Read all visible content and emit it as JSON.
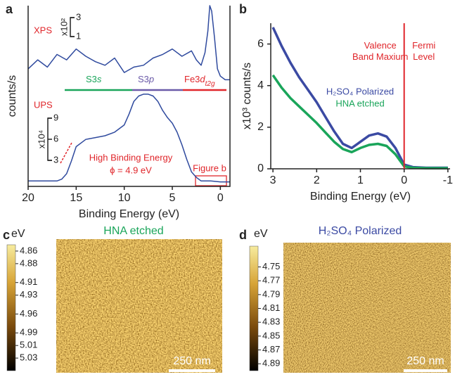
{
  "chart_data": [
    {
      "type": "line",
      "panel_label": "a",
      "xlabel": "Binding Energy (eV)",
      "ylabel": "counts/s",
      "xlim": [
        20,
        -1
      ],
      "xticks": [
        20,
        15,
        10,
        5,
        0
      ],
      "ylim": [
        0,
        100
      ],
      "series": [
        {
          "name": "XPS",
          "color": "#2f4a9e",
          "x": [
            20,
            19,
            18,
            17,
            16,
            15,
            14,
            13,
            12,
            11,
            10,
            9,
            8,
            7,
            6,
            5,
            4,
            3,
            2.5,
            2,
            1.6,
            1.3,
            1.1,
            0.9,
            0.6,
            0.3,
            0,
            -0.5,
            -1
          ],
          "values": [
            65,
            70,
            66,
            73,
            70,
            76,
            72,
            69,
            67,
            71,
            63,
            66,
            67,
            71,
            73,
            76,
            72,
            75,
            70,
            67,
            74,
            86,
            100,
            97,
            82,
            65,
            61,
            59,
            59
          ]
        },
        {
          "name": "UPS",
          "color": "#2f4a9e",
          "x": [
            20,
            18,
            17,
            16.5,
            16,
            15.5,
            15,
            14,
            13,
            12,
            11,
            10,
            9.5,
            9,
            8.5,
            8,
            7.5,
            7,
            6.5,
            6,
            5.5,
            5,
            4.5,
            4,
            3.5,
            3,
            2.5,
            2,
            1,
            0,
            -1
          ],
          "values": [
            3,
            3,
            3,
            4,
            7,
            14,
            22,
            26,
            27,
            28,
            30,
            34,
            40,
            47,
            50,
            51,
            51,
            50,
            47,
            42,
            38,
            35,
            30,
            23,
            15,
            8,
            5,
            3,
            3,
            2.5,
            2.5
          ]
        }
      ],
      "xps_scale": {
        "label": "x10²",
        "ticks": [
          3,
          1
        ]
      },
      "ups_scale": {
        "label": "x10⁴",
        "ticks": [
          9,
          6,
          3
        ]
      },
      "orbitals": [
        {
          "text": "S3",
          "suffix": "s"
        },
        {
          "text": "S3",
          "suffix": "p"
        },
        {
          "text": "Fe3",
          "suffix": "d",
          "subscript": "t2g"
        }
      ],
      "annotations": [
        "High Binding Energy",
        "ϕ = 4.9 eV",
        "Figure b"
      ]
    },
    {
      "type": "line",
      "panel_label": "b",
      "xlabel": "Binding Energy (eV)",
      "ylabel": "x10³ counts/s",
      "xlim": [
        3.05,
        -1.05
      ],
      "xticks": [
        3,
        2,
        1,
        0,
        -1
      ],
      "ylim": [
        0,
        7
      ],
      "yticks": [
        0,
        2,
        4,
        6
      ],
      "vline": 0,
      "vline_labels": [
        "Valence Band Maxium",
        "Fermi Level"
      ],
      "series": [
        {
          "name": "H₂SO₄ Polarized",
          "color": "#3b4aa3",
          "x": [
            3,
            2.8,
            2.6,
            2.4,
            2.2,
            2,
            1.8,
            1.6,
            1.4,
            1.2,
            1,
            0.8,
            0.6,
            0.4,
            0.2,
            0,
            -0.2,
            -0.5,
            -1
          ],
          "values": [
            6.8,
            5.9,
            5.1,
            4.4,
            3.8,
            3.2,
            2.5,
            1.8,
            1.2,
            1.0,
            1.3,
            1.6,
            1.7,
            1.55,
            1.0,
            0.2,
            0.08,
            0.05,
            0.05
          ]
        },
        {
          "name": "HNA etched",
          "color": "#1aa55a",
          "x": [
            3,
            2.8,
            2.6,
            2.4,
            2.2,
            2,
            1.8,
            1.6,
            1.4,
            1.2,
            1,
            0.8,
            0.6,
            0.4,
            0.2,
            0,
            -0.2,
            -0.5,
            -1
          ],
          "values": [
            4.5,
            3.9,
            3.4,
            3.0,
            2.6,
            2.2,
            1.75,
            1.3,
            0.95,
            0.8,
            1.0,
            1.15,
            1.2,
            1.1,
            0.7,
            0.12,
            0.05,
            0.03,
            0.03
          ]
        }
      ]
    },
    {
      "type": "image",
      "panel_label": "c",
      "title": "HNA etched",
      "colorbar_label": "eV",
      "scale_bar": "250 nm",
      "clim": [
        4.85,
        5.05
      ],
      "cticks": [
        4.86,
        4.88,
        4.91,
        4.93,
        4.96,
        4.99,
        5.01,
        5.03
      ]
    },
    {
      "type": "image",
      "panel_label": "d",
      "title": "H₂SO₄ Polarized",
      "colorbar_label": "eV",
      "scale_bar": "250 nm",
      "clim": [
        4.72,
        4.9
      ],
      "cticks": [
        4.75,
        4.77,
        4.79,
        4.81,
        4.83,
        4.85,
        4.87,
        4.89
      ]
    }
  ]
}
